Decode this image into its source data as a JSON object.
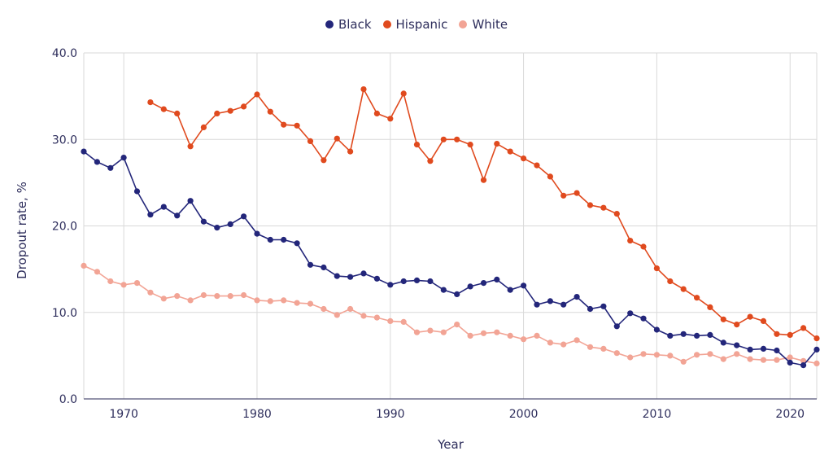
{
  "legend": {
    "black": "Black",
    "hispanic": "Hispanic",
    "white": "White"
  },
  "colors": {
    "black": "#23267a",
    "hispanic": "#e04a1e",
    "white": "#f2a495",
    "grid": "#d9d9d9",
    "text": "#2e2e5c"
  },
  "chart_data": {
    "type": "line",
    "title": "",
    "xlabel": "Year",
    "ylabel": "Dropout rate, %",
    "xlim": [
      1967,
      2022
    ],
    "ylim": [
      0,
      40
    ],
    "x_ticks": [
      "1970",
      "1980",
      "1990",
      "2000",
      "2010",
      "2020"
    ],
    "y_ticks": [
      "0.0",
      "10.0",
      "20.0",
      "30.0",
      "40.0"
    ],
    "grid": true,
    "legend_position": "top-center",
    "series": [
      {
        "name": "Black",
        "color": "#23267a",
        "x": [
          1967,
          1968,
          1969,
          1970,
          1971,
          1972,
          1973,
          1974,
          1975,
          1976,
          1977,
          1978,
          1979,
          1980,
          1981,
          1982,
          1983,
          1984,
          1985,
          1986,
          1987,
          1988,
          1989,
          1990,
          1991,
          1992,
          1993,
          1994,
          1995,
          1996,
          1997,
          1998,
          1999,
          2000,
          2001,
          2002,
          2003,
          2004,
          2005,
          2006,
          2007,
          2008,
          2009,
          2010,
          2011,
          2012,
          2013,
          2014,
          2015,
          2016,
          2017,
          2018,
          2019,
          2020,
          2021,
          2022
        ],
        "y": [
          28.6,
          27.4,
          26.7,
          27.9,
          24.0,
          21.3,
          22.2,
          21.2,
          22.9,
          20.5,
          19.8,
          20.2,
          21.1,
          19.1,
          18.4,
          18.4,
          18.0,
          15.5,
          15.2,
          14.2,
          14.1,
          14.5,
          13.9,
          13.2,
          13.6,
          13.7,
          13.6,
          12.6,
          12.1,
          13.0,
          13.4,
          13.8,
          12.6,
          13.1,
          10.9,
          11.3,
          10.9,
          11.8,
          10.4,
          10.7,
          8.4,
          9.9,
          9.3,
          8.0,
          7.3,
          7.5,
          7.3,
          7.4,
          6.5,
          6.2,
          5.7,
          5.8,
          5.6,
          4.2,
          3.9,
          5.7
        ]
      },
      {
        "name": "Hispanic",
        "color": "#e04a1e",
        "x": [
          1972,
          1973,
          1974,
          1975,
          1976,
          1977,
          1978,
          1979,
          1980,
          1981,
          1982,
          1983,
          1984,
          1985,
          1986,
          1987,
          1988,
          1989,
          1990,
          1991,
          1992,
          1993,
          1994,
          1995,
          1996,
          1997,
          1998,
          1999,
          2000,
          2001,
          2002,
          2003,
          2004,
          2005,
          2006,
          2007,
          2008,
          2009,
          2010,
          2011,
          2012,
          2013,
          2014,
          2015,
          2016,
          2017,
          2018,
          2019,
          2020,
          2021,
          2022
        ],
        "y": [
          34.3,
          33.5,
          33.0,
          29.2,
          31.4,
          33.0,
          33.3,
          33.8,
          35.2,
          33.2,
          31.7,
          31.6,
          29.8,
          27.6,
          30.1,
          28.6,
          35.8,
          33.0,
          32.4,
          35.3,
          29.4,
          27.5,
          30.0,
          30.0,
          29.4,
          25.3,
          29.5,
          28.6,
          27.8,
          27.0,
          25.7,
          23.5,
          23.8,
          22.4,
          22.1,
          21.4,
          18.3,
          17.6,
          15.1,
          13.6,
          12.7,
          11.7,
          10.6,
          9.2,
          8.6,
          9.5,
          9.0,
          7.5,
          7.4,
          8.2,
          7.0
        ]
      },
      {
        "name": "White",
        "color": "#f2a495",
        "x": [
          1967,
          1968,
          1969,
          1970,
          1971,
          1972,
          1973,
          1974,
          1975,
          1976,
          1977,
          1978,
          1979,
          1980,
          1981,
          1982,
          1983,
          1984,
          1985,
          1986,
          1987,
          1988,
          1989,
          1990,
          1991,
          1992,
          1993,
          1994,
          1995,
          1996,
          1997,
          1998,
          1999,
          2000,
          2001,
          2002,
          2003,
          2004,
          2005,
          2006,
          2007,
          2008,
          2009,
          2010,
          2011,
          2012,
          2013,
          2014,
          2015,
          2016,
          2017,
          2018,
          2019,
          2020,
          2021,
          2022
        ],
        "y": [
          15.4,
          14.7,
          13.6,
          13.2,
          13.4,
          12.3,
          11.6,
          11.9,
          11.4,
          12.0,
          11.9,
          11.9,
          12.0,
          11.4,
          11.3,
          11.4,
          11.1,
          11.0,
          10.4,
          9.7,
          10.4,
          9.6,
          9.4,
          9.0,
          8.9,
          7.7,
          7.9,
          7.7,
          8.6,
          7.3,
          7.6,
          7.7,
          7.3,
          6.9,
          7.3,
          6.5,
          6.3,
          6.8,
          6.0,
          5.8,
          5.3,
          4.8,
          5.2,
          5.1,
          5.0,
          4.3,
          5.1,
          5.2,
          4.6,
          5.2,
          4.6,
          4.5,
          4.5,
          4.8,
          4.4,
          4.1
        ]
      }
    ]
  }
}
